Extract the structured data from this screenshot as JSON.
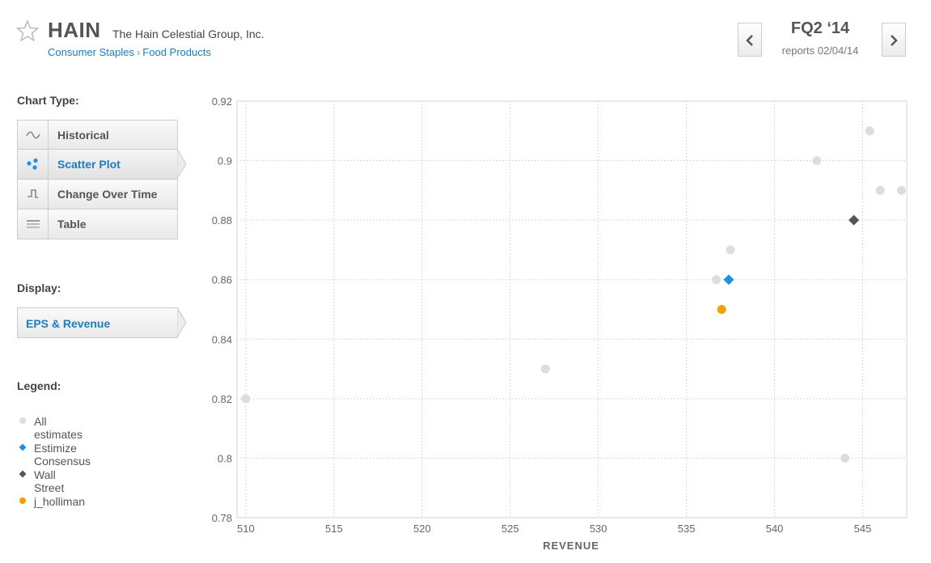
{
  "header": {
    "ticker": "HAIN",
    "company": "The Hain Celestial Group, Inc.",
    "breadcrumb": [
      "Consumer Staples",
      "Food Products"
    ],
    "breadcrumb_separator": "›",
    "period": "FQ2 ‘14",
    "reports": "reports 02/04/14"
  },
  "sidebar": {
    "chart_type_label": "Chart Type:",
    "chart_types": [
      {
        "label": "Historical",
        "icon": "wave-icon",
        "active": false
      },
      {
        "label": "Scatter Plot",
        "icon": "scatter-icon",
        "active": true
      },
      {
        "label": "Change Over Time",
        "icon": "step-icon",
        "active": false
      },
      {
        "label": "Table",
        "icon": "table-icon",
        "active": false
      }
    ],
    "display_label": "Display:",
    "display_value": "EPS & Revenue",
    "legend_label": "Legend:",
    "legend": [
      {
        "label": "All estimates",
        "marker": "circle",
        "color": "#dddddd"
      },
      {
        "label": "Estimize Consensus",
        "marker": "diamond",
        "color": "#1e90e8"
      },
      {
        "label": "Wall Street",
        "marker": "diamond",
        "color": "#555555"
      },
      {
        "label": "j_holliman",
        "marker": "circle",
        "color": "#f5a000"
      }
    ]
  },
  "chart_data": {
    "type": "scatter",
    "xlabel": "REVENUE",
    "ylabel": "",
    "xlim": [
      509.5,
      547.5
    ],
    "ylim": [
      0.78,
      0.92
    ],
    "xticks": [
      510,
      515,
      520,
      525,
      530,
      535,
      540,
      545
    ],
    "yticks": [
      0.78,
      0.8,
      0.82,
      0.84,
      0.86,
      0.88,
      0.9,
      0.92
    ],
    "yticklabels": [
      "0.78",
      "0.8",
      "0.82",
      "0.84",
      "0.86",
      "0.88",
      "0.9",
      "0.92"
    ],
    "grid": true,
    "series": [
      {
        "name": "All estimates",
        "marker": "circle",
        "color": "#dddddd",
        "points": [
          [
            510,
            0.82
          ],
          [
            527,
            0.83
          ],
          [
            536.7,
            0.86
          ],
          [
            537.5,
            0.87
          ],
          [
            542.4,
            0.9
          ],
          [
            545.4,
            0.91
          ],
          [
            546,
            0.89
          ],
          [
            547.2,
            0.89
          ],
          [
            544,
            0.8
          ]
        ]
      },
      {
        "name": "Estimize Consensus",
        "marker": "diamond",
        "color": "#1e90e8",
        "points": [
          [
            537.4,
            0.86
          ]
        ]
      },
      {
        "name": "Wall Street",
        "marker": "diamond",
        "color": "#555555",
        "points": [
          [
            544.5,
            0.88
          ]
        ]
      },
      {
        "name": "j_holliman",
        "marker": "circle",
        "color": "#f5a000",
        "points": [
          [
            537,
            0.85
          ]
        ]
      }
    ]
  }
}
